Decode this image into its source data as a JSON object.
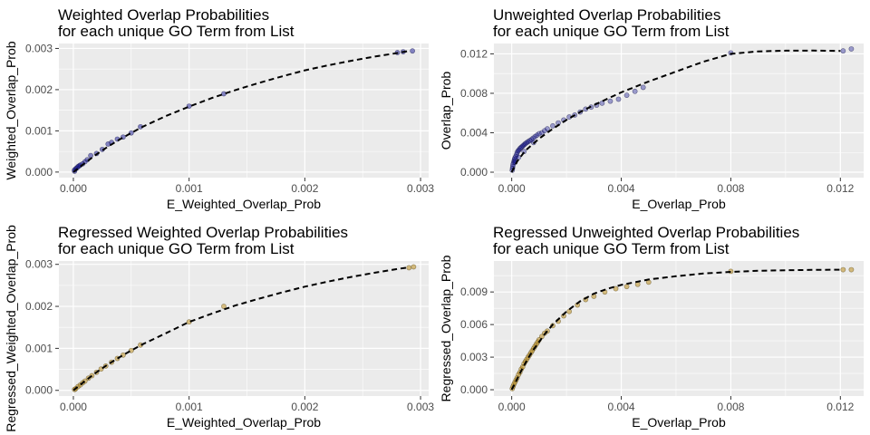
{
  "chart_data": [
    {
      "type": "scatter",
      "title": "Weighted Overlap Probabilities",
      "subtitle": "for each unique GO Term from List",
      "xlabel": "E_Weighted_Overlap_Prob",
      "ylabel": "Weighted_Overlap_Prob",
      "xlim": [
        -0.000125,
        0.00307
      ],
      "ylim": [
        -0.000135,
        0.00312
      ],
      "xticks": [
        0,
        0.001,
        0.002,
        0.003
      ],
      "xtick_labels": [
        "0.000",
        "0.001",
        "0.002",
        "0.003"
      ],
      "yticks": [
        0,
        0.001,
        0.002,
        0.003
      ],
      "ytick_labels": [
        "0.000",
        "0.001",
        "0.002",
        "0.003"
      ],
      "grid": true,
      "point_color": "#00008b",
      "point_alpha": 0.45,
      "point_stroke": "#1a1a4d",
      "x": [
        1e-05,
        1e-05,
        2e-05,
        3e-05,
        4e-05,
        5e-05,
        6e-05,
        8e-05,
        0.0001,
        0.00012,
        0.00015,
        0.0002,
        0.00025,
        0.0003,
        0.00033,
        0.00038,
        0.00043,
        0.0005,
        0.00058,
        0.001,
        0.0013,
        0.0028,
        0.00285,
        0.00293
      ],
      "y": [
        2e-05,
        5e-05,
        8e-05,
        0.0001,
        0.00013,
        0.00015,
        0.00017,
        0.0002,
        0.00025,
        0.0003,
        0.0004,
        0.00045,
        0.00055,
        0.00068,
        0.00072,
        0.0008,
        0.00085,
        0.00095,
        0.0011,
        0.0016,
        0.0019,
        0.0029,
        0.00292,
        0.00294
      ],
      "trend": {
        "style": "dashed",
        "color": "#000000",
        "x": [
          0,
          0.0001,
          0.0002,
          0.0003,
          0.0004,
          0.0005,
          0.0006,
          0.0008,
          0.001,
          0.0012,
          0.0014,
          0.0016,
          0.0018,
          0.002,
          0.0022,
          0.0024,
          0.0026,
          0.0028,
          0.0029
        ],
        "y": [
          0,
          0.00022,
          0.00043,
          0.00062,
          0.00079,
          0.00095,
          0.0011,
          0.00136,
          0.00159,
          0.0018,
          0.00199,
          0.00216,
          0.00232,
          0.00247,
          0.00259,
          0.0027,
          0.0028,
          0.00289,
          0.00294
        ]
      }
    },
    {
      "type": "scatter",
      "title": "Unweighted Overlap Probabilities",
      "subtitle": "for each unique GO Term from List",
      "xlabel": "E_Overlap_Prob",
      "ylabel": "Overlap_Prob",
      "xlim": [
        -0.00065,
        0.01285
      ],
      "ylim": [
        -0.00055,
        0.01305
      ],
      "xticks": [
        0,
        0.004,
        0.008,
        0.012
      ],
      "xtick_labels": [
        "0.000",
        "0.004",
        "0.008",
        "0.012"
      ],
      "yticks": [
        0,
        0.004,
        0.008,
        0.012
      ],
      "ytick_labels": [
        "0.000",
        "0.004",
        "0.008",
        "0.012"
      ],
      "grid": true,
      "point_color": "#00008b",
      "point_alpha": 0.35,
      "point_stroke": "#1a1a4d",
      "x": [
        2e-05,
        3e-05,
        4e-05,
        5e-05,
        7e-05,
        9e-05,
        0.0001,
        0.00012,
        0.00015,
        0.00018,
        0.0002,
        0.00023,
        0.00026,
        0.0003,
        0.00034,
        0.00038,
        0.00042,
        0.00046,
        0.0005,
        0.00055,
        0.0006,
        0.00066,
        0.00072,
        0.00078,
        0.00085,
        0.00092,
        0.001,
        0.0011,
        0.0012,
        0.0013,
        0.0015,
        0.0017,
        0.0019,
        0.0021,
        0.0023,
        0.0025,
        0.0027,
        0.0029,
        0.0031,
        0.0033,
        0.0036,
        0.0039,
        0.0042,
        0.0045,
        0.0048,
        0.008,
        0.0121,
        0.0124,
        0.00012,
        0.00025,
        0.00045,
        0.0008
      ],
      "y": [
        0.0002,
        0.0004,
        0.0006,
        0.0008,
        0.001,
        0.00115,
        0.0013,
        0.00145,
        0.0016,
        0.0018,
        0.002,
        0.00215,
        0.00225,
        0.0024,
        0.0025,
        0.0026,
        0.0027,
        0.0028,
        0.0029,
        0.003,
        0.0031,
        0.0032,
        0.0033,
        0.00345,
        0.0036,
        0.00375,
        0.0039,
        0.004,
        0.0042,
        0.0044,
        0.0047,
        0.005,
        0.0053,
        0.0056,
        0.0058,
        0.0061,
        0.0064,
        0.0066,
        0.0068,
        0.007,
        0.0072,
        0.0074,
        0.0078,
        0.0082,
        0.0086,
        0.0121,
        0.0123,
        0.0125,
        0.001,
        0.0015,
        0.0021,
        0.003
      ],
      "trend": {
        "style": "dashed",
        "color": "#000000",
        "x": [
          0,
          0.0002,
          0.0005,
          0.001,
          0.0015,
          0.002,
          0.0025,
          0.003,
          0.0035,
          0.004,
          0.005,
          0.006,
          0.007,
          0.008,
          0.009,
          0.01,
          0.011,
          0.012
        ],
        "y": [
          0,
          0.0011,
          0.0022,
          0.0034,
          0.0044,
          0.0053,
          0.0061,
          0.0068,
          0.00745,
          0.0081,
          0.0092,
          0.0102,
          0.0112,
          0.012,
          0.01225,
          0.01232,
          0.01233,
          0.0123
        ]
      }
    },
    {
      "type": "scatter",
      "title": "Regressed Weighted Overlap Probabilities",
      "subtitle": "for each unique GO Term from List",
      "xlabel": "E_Weighted_Overlap_Prob",
      "ylabel": "Regressed_Weighted_Overlap_Prob",
      "xlim": [
        -0.000125,
        0.00307
      ],
      "ylim": [
        -0.000135,
        0.00308
      ],
      "xticks": [
        0,
        0.001,
        0.002,
        0.003
      ],
      "xtick_labels": [
        "0.000",
        "0.001",
        "0.002",
        "0.003"
      ],
      "yticks": [
        0,
        0.001,
        0.002,
        0.003
      ],
      "ytick_labels": [
        "0.000",
        "0.001",
        "0.002",
        "0.003"
      ],
      "grid": true,
      "point_color": "#b8860b",
      "point_alpha": 0.5,
      "point_stroke": "#5a4a1a",
      "x": [
        1e-05,
        2e-05,
        4e-05,
        6e-05,
        8e-05,
        0.0001,
        0.00013,
        0.00016,
        0.0002,
        0.00024,
        0.00028,
        0.00033,
        0.00038,
        0.00043,
        0.0005,
        0.00058,
        0.001,
        0.0013,
        0.0029,
        0.00294
      ],
      "y": [
        2e-05,
        4e-05,
        9e-05,
        0.00013,
        0.00018,
        0.00022,
        0.00029,
        0.00035,
        0.00043,
        0.00051,
        0.00058,
        0.00067,
        0.00076,
        0.00084,
        0.00095,
        0.00108,
        0.00163,
        0.002,
        0.00292,
        0.00294
      ],
      "trend": {
        "style": "dashed",
        "color": "#000000",
        "x": [
          0,
          0.0001,
          0.0002,
          0.0003,
          0.0004,
          0.0005,
          0.0006,
          0.0008,
          0.001,
          0.0012,
          0.0014,
          0.0016,
          0.0018,
          0.002,
          0.0022,
          0.0024,
          0.0026,
          0.0028,
          0.0029
        ],
        "y": [
          0,
          0.00022,
          0.00043,
          0.00062,
          0.00079,
          0.00095,
          0.0011,
          0.00136,
          0.00163,
          0.00183,
          0.00202,
          0.00218,
          0.00233,
          0.00247,
          0.00259,
          0.0027,
          0.0028,
          0.00289,
          0.00293
        ]
      }
    },
    {
      "type": "scatter",
      "title": "Regressed Unweighted Overlap Probabilities",
      "subtitle": "for each unique GO Term from List",
      "xlabel": "E_Overlap_Prob",
      "ylabel": "Regressed_Overlap_Prob",
      "xlim": [
        -0.00065,
        0.01285
      ],
      "ylim": [
        -0.00058,
        0.01185
      ],
      "xticks": [
        0,
        0.004,
        0.008,
        0.012
      ],
      "xtick_labels": [
        "0.000",
        "0.004",
        "0.008",
        "0.012"
      ],
      "yticks": [
        0,
        0.003,
        0.006,
        0.009
      ],
      "ytick_labels": [
        "0.000",
        "0.003",
        "0.006",
        "0.009"
      ],
      "grid": true,
      "point_color": "#b8860b",
      "point_alpha": 0.5,
      "point_stroke": "#5a4a1a",
      "x": [
        2e-05,
        5e-05,
        8e-05,
        0.00012,
        0.00016,
        0.0002,
        0.00025,
        0.0003,
        0.00035,
        0.0004,
        0.00045,
        0.0005,
        0.00055,
        0.0006,
        0.00065,
        0.0007,
        0.00075,
        0.0008,
        0.00085,
        0.0009,
        0.00095,
        0.001,
        0.0011,
        0.0012,
        0.0013,
        0.0015,
        0.0017,
        0.0019,
        0.0021,
        0.0024,
        0.0027,
        0.003,
        0.0034,
        0.0038,
        0.0042,
        0.0046,
        0.005,
        0.008,
        0.0121,
        0.0124
      ],
      "y": [
        0.0001,
        0.0003,
        0.0005,
        0.0007,
        0.0009,
        0.0011,
        0.0014,
        0.0016,
        0.0019,
        0.0021,
        0.0024,
        0.0026,
        0.0028,
        0.003,
        0.0032,
        0.0034,
        0.0036,
        0.0038,
        0.004,
        0.0042,
        0.0044,
        0.0046,
        0.0049,
        0.0052,
        0.0054,
        0.0059,
        0.0063,
        0.0068,
        0.0072,
        0.0078,
        0.0083,
        0.0086,
        0.009,
        0.0093,
        0.0095,
        0.0097,
        0.0099,
        0.0109,
        0.01105,
        0.01105
      ],
      "trend": {
        "style": "dashed",
        "color": "#000000",
        "x": [
          0,
          0.0002,
          0.0004,
          0.0006,
          0.0008,
          0.001,
          0.0012,
          0.0015,
          0.002,
          0.0025,
          0.003,
          0.0035,
          0.004,
          0.005,
          0.006,
          0.007,
          0.008,
          0.009,
          0.01,
          0.011,
          0.012
        ],
        "y": [
          0,
          0.001,
          0.002,
          0.0029,
          0.0037,
          0.0044,
          0.0051,
          0.006,
          0.0072,
          0.00815,
          0.00885,
          0.0093,
          0.00965,
          0.01015,
          0.01045,
          0.0107,
          0.01085,
          0.01095,
          0.011,
          0.01103,
          0.01105
        ]
      }
    }
  ]
}
